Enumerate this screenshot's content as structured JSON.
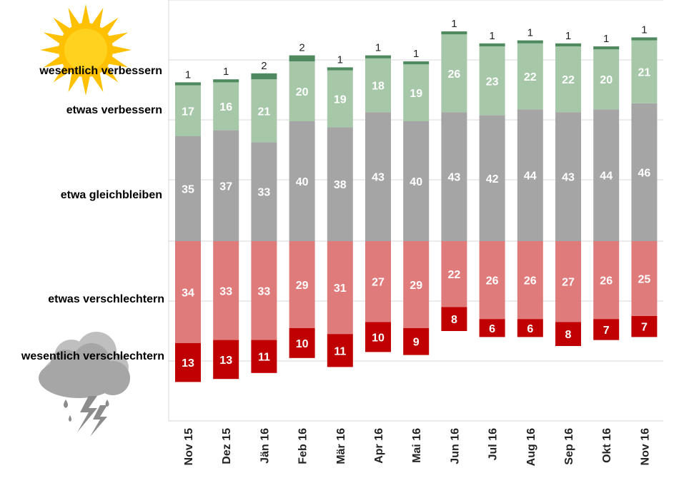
{
  "chart_data": {
    "type": "bar",
    "stacked": "diverging",
    "categories": [
      "Nov 15",
      "Dez 15",
      "Jän 16",
      "Feb 16",
      "Mär 16",
      "Apr 16",
      "Mai 16",
      "Jun 16",
      "Jul 16",
      "Aug 16",
      "Sep 16",
      "Okt 16",
      "Nov 16"
    ],
    "series": [
      {
        "name": "wesentlich verbessern",
        "direction": "up",
        "color": "#4e8a5e",
        "values": [
          1,
          1,
          2,
          2,
          1,
          1,
          1,
          1,
          1,
          1,
          1,
          1,
          1
        ]
      },
      {
        "name": "etwas verbessern",
        "direction": "up",
        "color": "#a6c8a8",
        "values": [
          17,
          16,
          21,
          20,
          19,
          18,
          19,
          26,
          23,
          22,
          22,
          20,
          21
        ]
      },
      {
        "name": "etwa gleichbleiben",
        "direction": "up",
        "color": "#a5a5a5",
        "values": [
          35,
          37,
          33,
          40,
          38,
          43,
          40,
          43,
          42,
          44,
          43,
          44,
          46
        ]
      },
      {
        "name": "etwas verschlechtern",
        "direction": "down",
        "color": "#e07b7b",
        "values": [
          34,
          33,
          33,
          29,
          31,
          27,
          29,
          22,
          26,
          26,
          27,
          26,
          25
        ]
      },
      {
        "name": "wesentlich verschlechtern",
        "direction": "down",
        "color": "#c00000",
        "values": [
          13,
          13,
          11,
          10,
          11,
          10,
          9,
          8,
          6,
          6,
          8,
          7,
          7
        ]
      }
    ],
    "grid": true,
    "legend": "left",
    "icons": [
      "sun-icon",
      "storm-cloud-icon"
    ]
  }
}
